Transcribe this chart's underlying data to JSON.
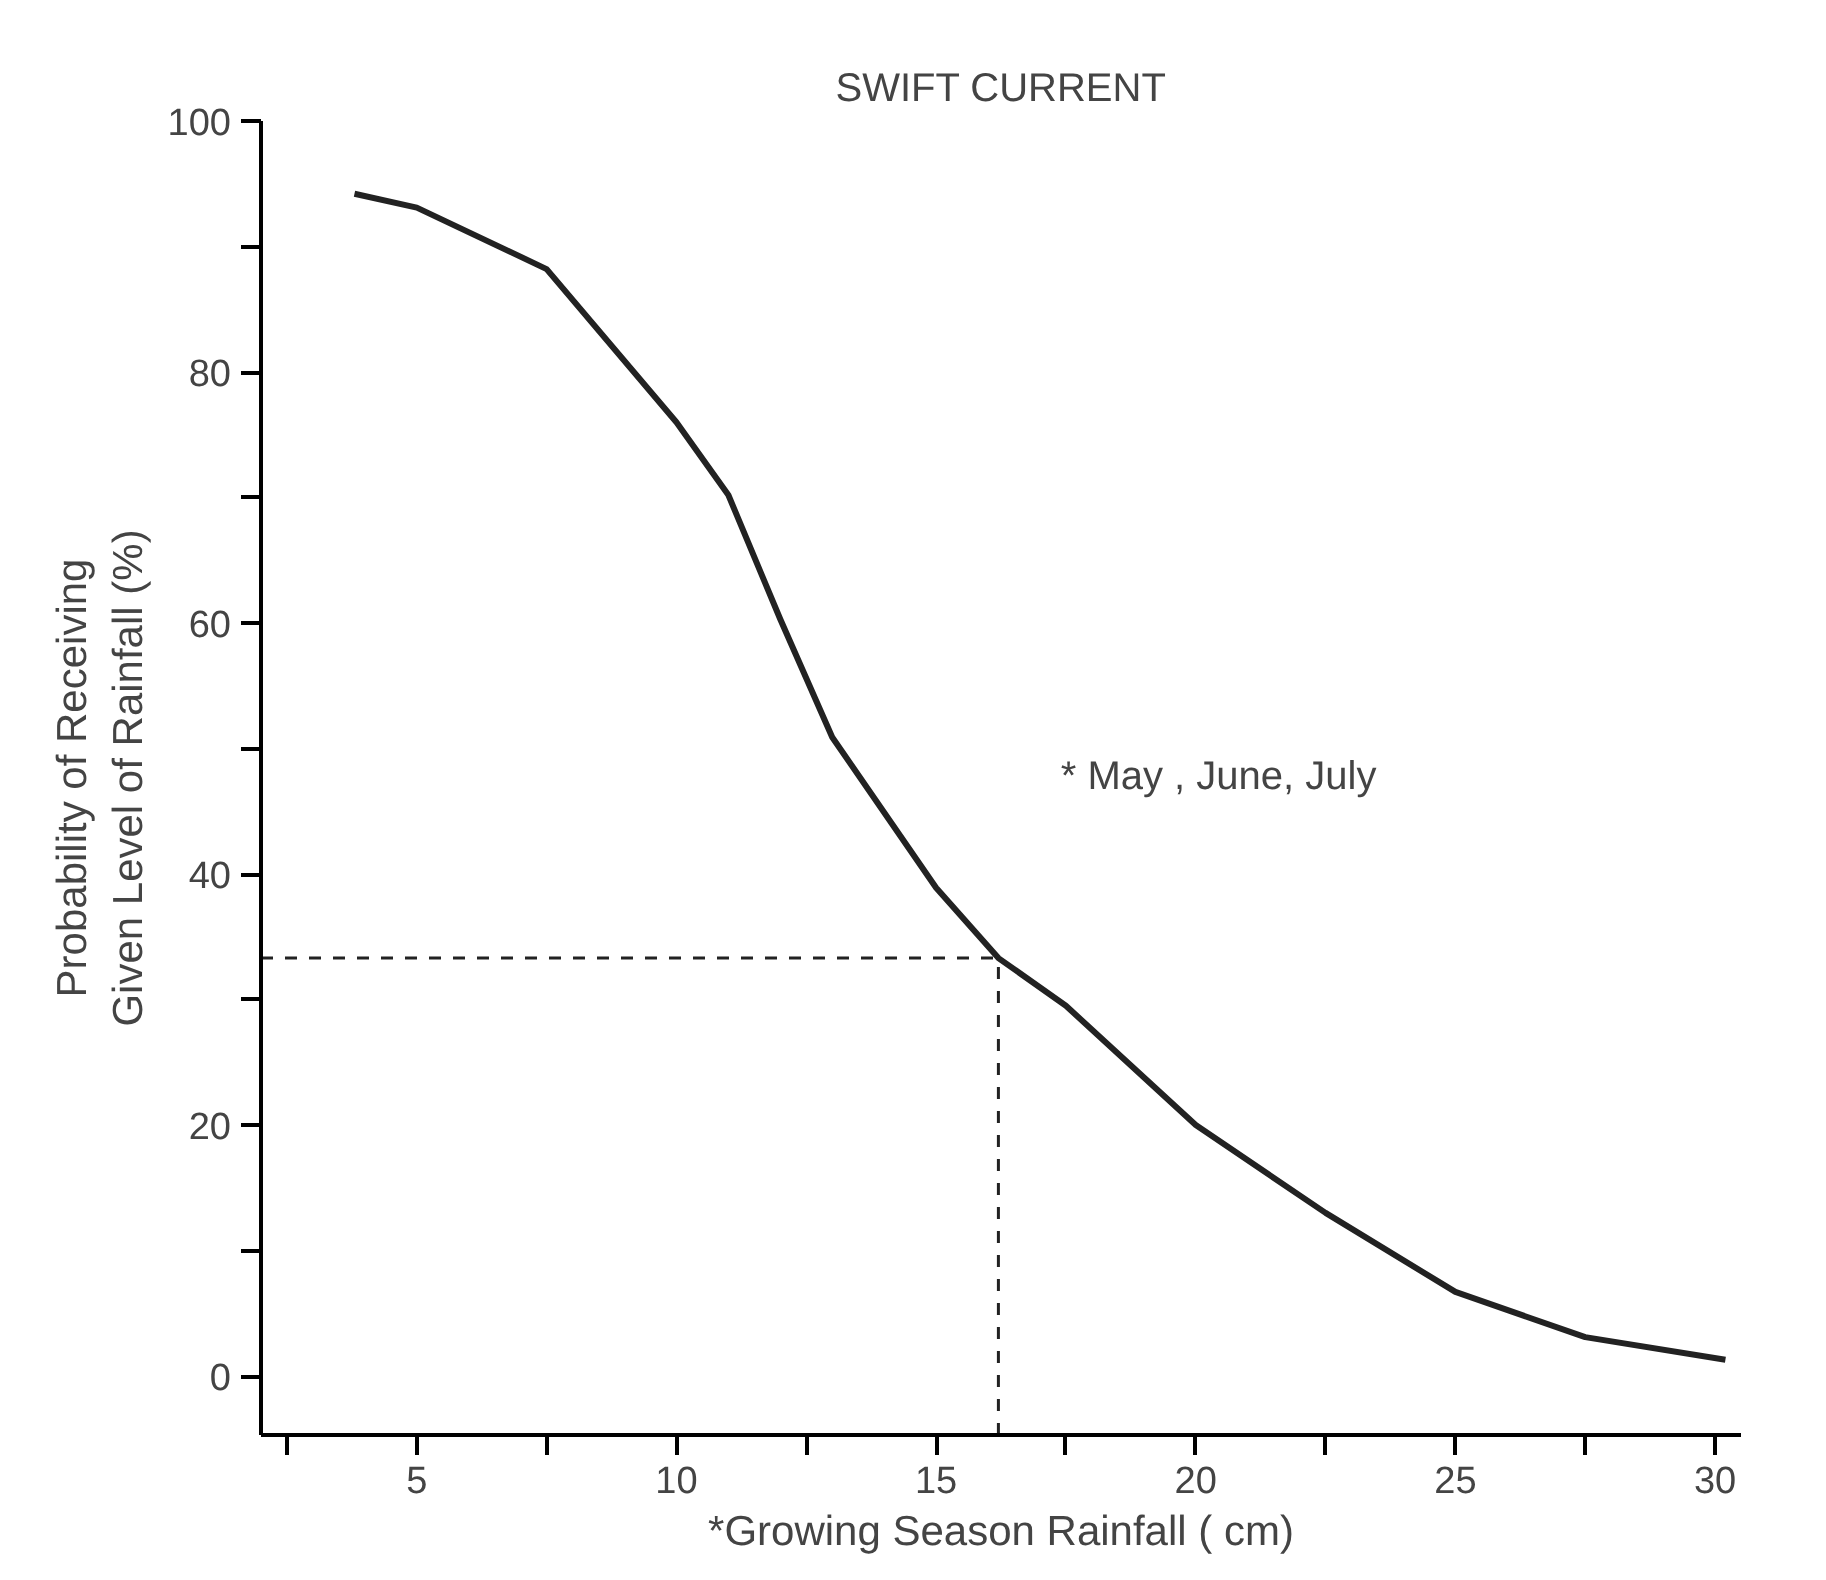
{
  "chart_data": {
    "type": "line",
    "title": "SWIFT CURRENT",
    "xlabel": "*Growing Season Rainfall ( cm)",
    "ylabel": "Probability of Receiving\nGiven Level of Rainfall (%)",
    "x": [
      3.8,
      5,
      7.5,
      10,
      11,
      12,
      13,
      15,
      16.2,
      17.5,
      20,
      22.5,
      25,
      27.5,
      30.2
    ],
    "series": [
      {
        "color": "#222222",
        "values": [
          94.2,
          93.1,
          88.2,
          76.0,
          70.2,
          60.3,
          50.9,
          38.9,
          33.3,
          29.5,
          20,
          13,
          6.7,
          3.1,
          1.3
        ]
      }
    ],
    "xlim": [
      2,
      30.5
    ],
    "ylim": [
      -4.7,
      100
    ],
    "xticks": [
      {
        "value": 2.5,
        "label": null
      },
      5,
      {
        "value": 7.5,
        "label": null
      },
      10,
      {
        "value": 12.5,
        "label": null
      },
      15,
      {
        "value": 17.5,
        "label": null
      },
      20,
      {
        "value": 22.5,
        "label": null
      },
      25,
      {
        "value": 27.5,
        "label": null
      },
      30
    ],
    "yticks": [
      0,
      {
        "value": 10,
        "label": null
      },
      20,
      {
        "value": 30,
        "label": null
      },
      40,
      {
        "value": 50,
        "label": null
      },
      60,
      {
        "value": 70,
        "label": null
      },
      80,
      {
        "value": 90,
        "label": null
      },
      100
    ],
    "ref_lines": [
      {
        "axis": "y",
        "value": 33.3,
        "line_style": "dashed"
      },
      {
        "axis": "x",
        "value": 16.2,
        "line_style": "dashed"
      }
    ],
    "annotations": [
      "* May , June, July"
    ],
    "grid": false,
    "line_style": "solid",
    "marker": "none"
  }
}
